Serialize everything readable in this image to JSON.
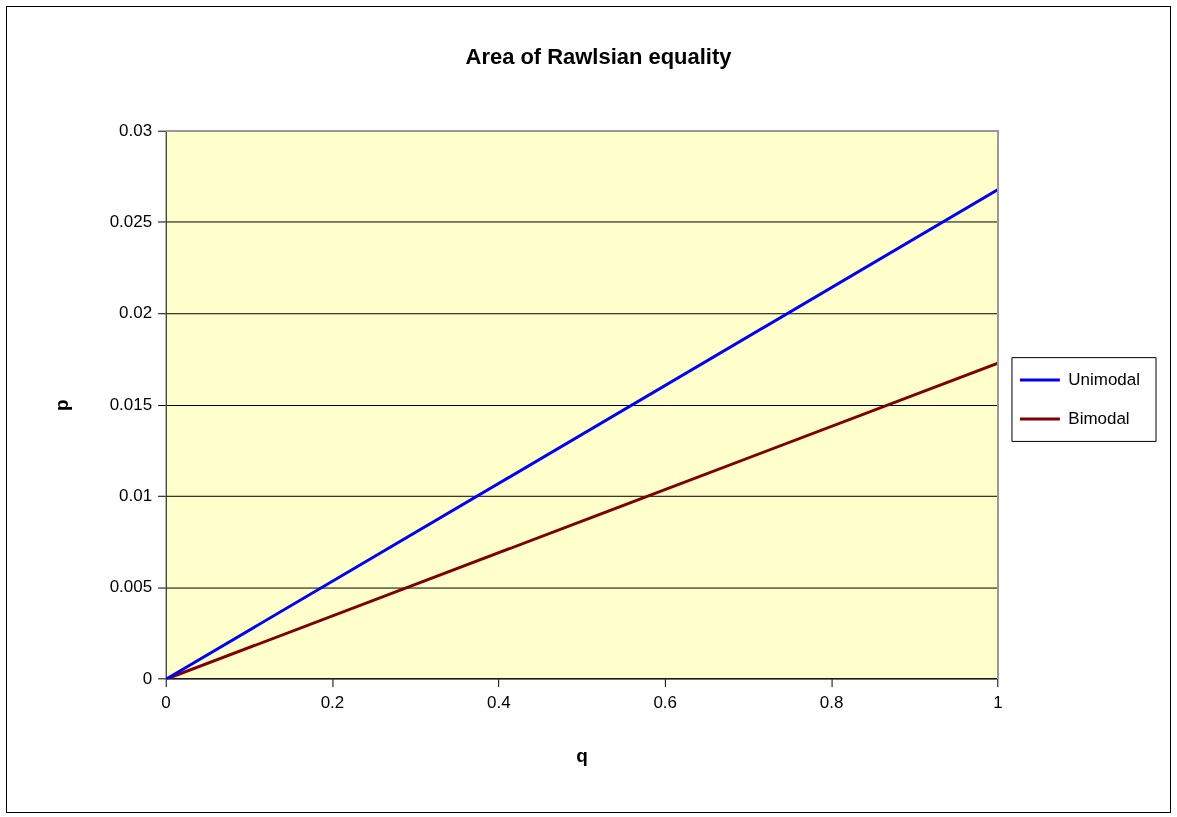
{
  "chart_data": {
    "type": "line",
    "title": "Area of Rawlsian equality",
    "xlabel": "q",
    "ylabel": "p",
    "x": [
      0,
      1
    ],
    "series": [
      {
        "name": "Unimodal",
        "color": "#0000ff",
        "values": [
          0,
          0.0268
        ]
      },
      {
        "name": "Bimodal",
        "color": "#800000",
        "values": [
          0,
          0.0173
        ]
      }
    ],
    "xlim": [
      0,
      1
    ],
    "xticks": [
      0,
      0.2,
      0.4,
      0.6,
      0.8,
      1
    ],
    "ylim": [
      0,
      0.03
    ],
    "yticks": [
      0,
      0.005,
      0.01,
      0.015,
      0.02,
      0.025,
      0.03
    ],
    "grid": "y",
    "legend": "right",
    "marker": "none",
    "line_style": "solid"
  }
}
